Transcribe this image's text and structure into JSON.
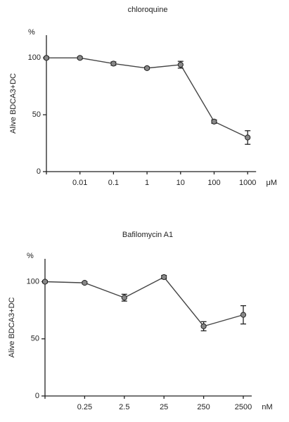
{
  "chart_data": [
    {
      "type": "line",
      "title": "chloroquine",
      "y_label": "Alive BDCA3+DC",
      "y_unit": "%",
      "x_unit": "μM",
      "categories": [
        null,
        "0.01",
        "0.1",
        "1",
        "10",
        "100",
        "1000"
      ],
      "values": [
        100,
        100,
        95,
        91,
        94,
        44,
        30
      ],
      "errors": [
        1,
        1,
        1.5,
        1,
        3,
        1.5,
        6
      ],
      "color": "#444444",
      "ylim": [
        0,
        120
      ],
      "yticks": [
        0,
        50,
        100
      ]
    },
    {
      "type": "line",
      "title": "Bafilomycin A1",
      "y_label": "Alive BDCA3+DC",
      "y_unit": "%",
      "x_unit": "nM",
      "categories": [
        null,
        "0.25",
        "2.5",
        "25",
        "250",
        "2500"
      ],
      "values": [
        100,
        99,
        86,
        104,
        61,
        71
      ],
      "errors": [
        1,
        1,
        3,
        1.5,
        4,
        8
      ],
      "color": "#444444",
      "ylim": [
        0,
        120
      ],
      "yticks": [
        0,
        50,
        100
      ]
    }
  ]
}
